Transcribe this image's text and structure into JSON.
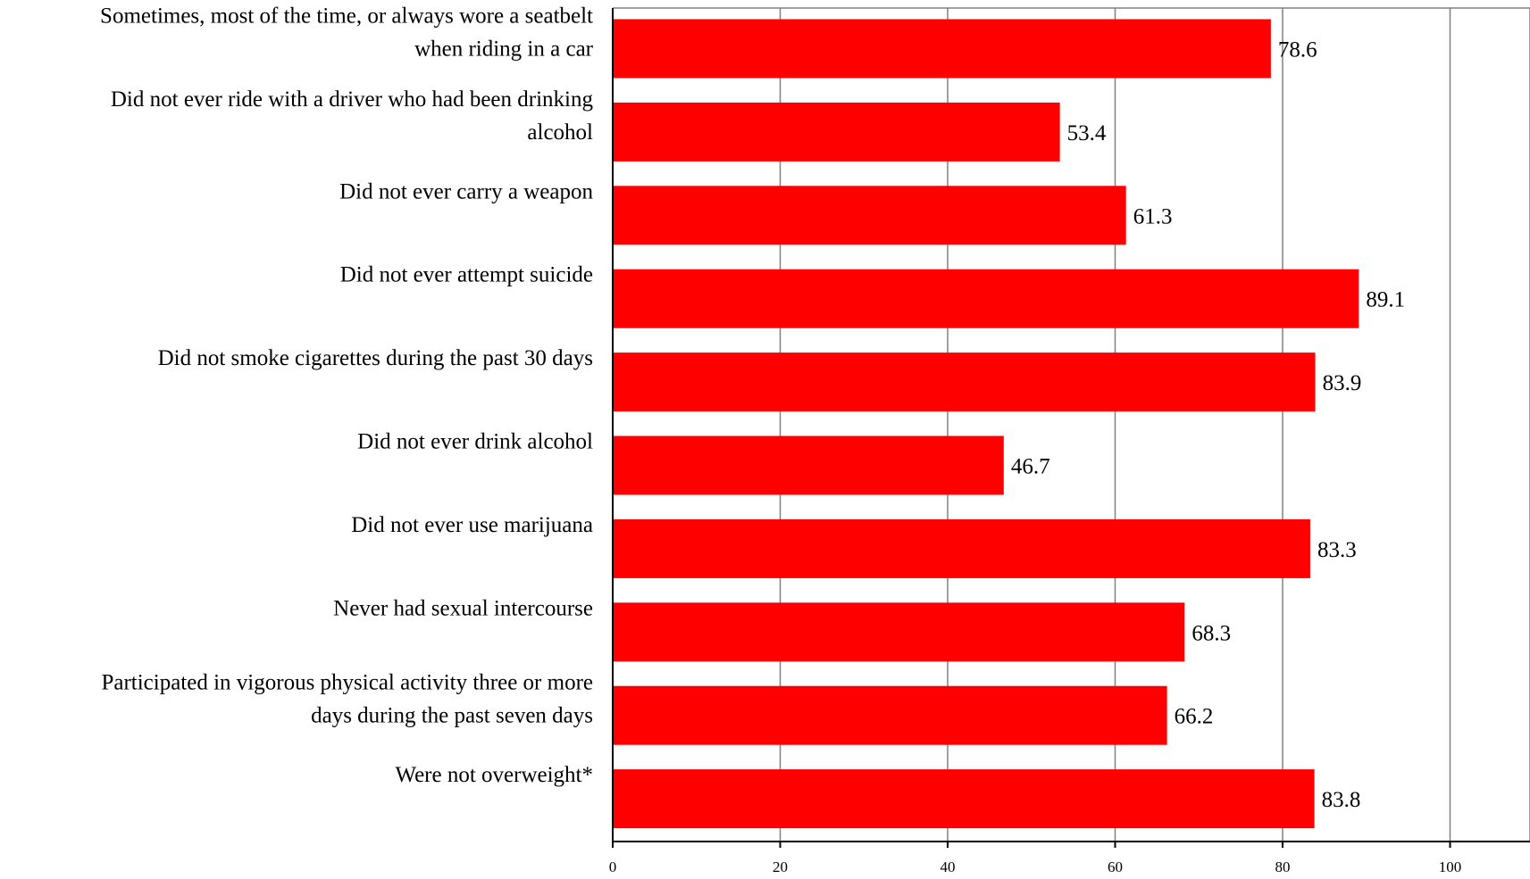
{
  "chart_data": {
    "type": "bar",
    "orientation": "horizontal",
    "categories": [
      [
        "Sometimes, most of the time, or always wore a seatbelt",
        "when riding in a car"
      ],
      [
        "Did not ever ride with a driver who had been drinking",
        "alcohol"
      ],
      [
        "Did not ever carry a weapon"
      ],
      [
        "Did not ever attempt suicide"
      ],
      [
        "Did not smoke cigarettes during the past 30 days"
      ],
      [
        "Did not ever drink alcohol"
      ],
      [
        "Did not ever use marijuana"
      ],
      [
        "Never had sexual intercourse"
      ],
      [
        "Participated in vigorous physical activity three or more",
        "days during the past seven days"
      ],
      [
        "Were not overweight*"
      ]
    ],
    "values": [
      78.6,
      53.4,
      61.3,
      89.1,
      83.9,
      46.7,
      83.3,
      68.3,
      66.2,
      83.8
    ],
    "value_labels": [
      "78.6",
      "53.4",
      "61.3",
      "89.1",
      "83.9",
      "46.7",
      "83.3",
      "68.3",
      "66.2",
      "83.8"
    ],
    "xlim": [
      0,
      100
    ],
    "xticks": [
      0,
      20,
      40,
      60,
      80,
      100
    ],
    "xtick_labels": [
      "0",
      "20",
      "40",
      "60",
      "80",
      "100"
    ],
    "grid": true,
    "bar_color": "#FF0000",
    "title": "",
    "xlabel": "",
    "ylabel": ""
  }
}
